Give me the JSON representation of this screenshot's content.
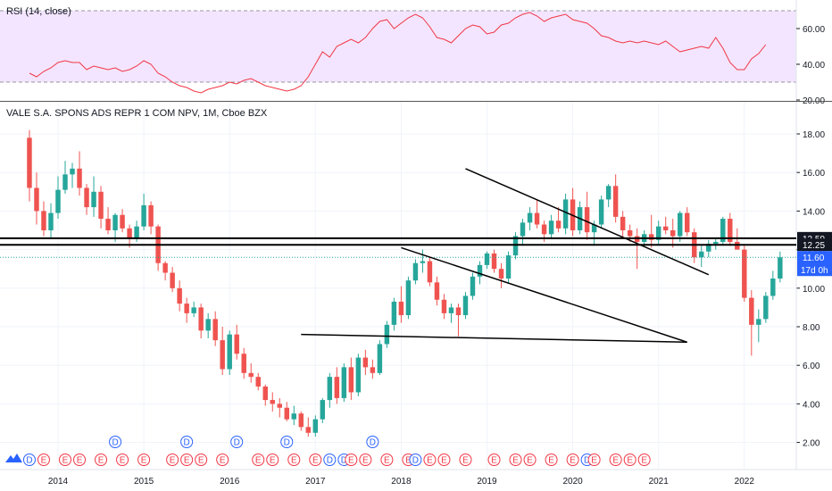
{
  "rsi": {
    "label": "RSI (14, close)",
    "ticks": [
      "60.00",
      "40.00",
      "20.00"
    ],
    "upper_band": 70,
    "lower_band": 30,
    "values": [
      35,
      33,
      36,
      38,
      41,
      42,
      41,
      41,
      37,
      39,
      38,
      37,
      38,
      36,
      37,
      39,
      42,
      40,
      35,
      33,
      30,
      28,
      27,
      25,
      24,
      26,
      27,
      28,
      30,
      29,
      31,
      32,
      30,
      28,
      27,
      26,
      25,
      26,
      28,
      33,
      40,
      47,
      44,
      50,
      52,
      54,
      52,
      55,
      60,
      64,
      65,
      60,
      63,
      66,
      68,
      66,
      61,
      55,
      54,
      52,
      56,
      60,
      62,
      61,
      57,
      58,
      62,
      63,
      66,
      68,
      69,
      67,
      64,
      66,
      67,
      68,
      65,
      64,
      63,
      60,
      56,
      55,
      53,
      52,
      53,
      52,
      53,
      52,
      51,
      53,
      50,
      47,
      48,
      49,
      50,
      49,
      55,
      49,
      41,
      37,
      37,
      43,
      46,
      51
    ],
    "line_color": "#f23645",
    "band_fill": "#f3e5ff"
  },
  "main": {
    "title": "VALE S.A. SPONS ADS REPR 1 COM NPV, 1M, Cboe BZX",
    "price_ticks": [
      "18.00",
      "16.00",
      "14.00",
      "12.00",
      "10.00",
      "8.00",
      "6.00",
      "4.00",
      "2.00"
    ],
    "levels": [
      {
        "value": 12.59,
        "label": "12.59"
      },
      {
        "value": 12.25,
        "label": "12.25"
      }
    ],
    "last_price": {
      "value": 11.6,
      "label": "11.60",
      "countdown": "17d 0h"
    },
    "colors": {
      "up": "#26a69a",
      "down": "#ef5350",
      "last_price": "#2962ff"
    },
    "candles": [
      [
        17.8,
        18.2,
        14.5,
        15.2
      ],
      [
        15.2,
        16.0,
        13.3,
        14.0
      ],
      [
        14.0,
        14.5,
        12.7,
        13.0
      ],
      [
        13.0,
        14.4,
        12.6,
        13.9
      ],
      [
        13.9,
        15.8,
        13.6,
        15.1
      ],
      [
        15.1,
        16.6,
        14.9,
        15.9
      ],
      [
        15.9,
        16.5,
        15.2,
        16.2
      ],
      [
        16.2,
        17.1,
        14.8,
        15.2
      ],
      [
        15.2,
        15.4,
        13.8,
        14.2
      ],
      [
        14.2,
        15.8,
        13.7,
        15.0
      ],
      [
        15.0,
        15.3,
        13.1,
        13.6
      ],
      [
        13.6,
        14.2,
        12.8,
        13.0
      ],
      [
        13.0,
        13.9,
        12.4,
        13.8
      ],
      [
        13.8,
        14.1,
        12.9,
        13.1
      ],
      [
        13.1,
        13.3,
        12.1,
        12.6
      ],
      [
        12.6,
        13.5,
        12.4,
        13.2
      ],
      [
        13.2,
        14.9,
        13.0,
        14.3
      ],
      [
        14.3,
        14.5,
        12.8,
        13.2
      ],
      [
        13.2,
        13.3,
        10.9,
        11.3
      ],
      [
        11.3,
        11.4,
        10.4,
        10.8
      ],
      [
        10.8,
        11.1,
        9.8,
        10.0
      ],
      [
        10.0,
        10.4,
        8.8,
        9.2
      ],
      [
        9.2,
        9.5,
        8.2,
        8.7
      ],
      [
        8.7,
        9.3,
        8.5,
        9.0
      ],
      [
        9.0,
        9.2,
        7.4,
        7.8
      ],
      [
        7.8,
        8.7,
        7.4,
        8.4
      ],
      [
        8.4,
        8.8,
        7.0,
        7.3
      ],
      [
        7.3,
        8.0,
        5.5,
        5.8
      ],
      [
        5.8,
        7.8,
        5.5,
        7.6
      ],
      [
        7.6,
        8.1,
        6.3,
        6.6
      ],
      [
        6.6,
        6.9,
        5.3,
        5.6
      ],
      [
        5.6,
        6.1,
        5.1,
        5.4
      ],
      [
        5.4,
        5.6,
        4.7,
        4.9
      ],
      [
        4.9,
        5.0,
        3.9,
        4.2
      ],
      [
        4.2,
        4.6,
        3.6,
        4.0
      ],
      [
        4.0,
        4.3,
        3.3,
        3.8
      ],
      [
        3.8,
        4.1,
        3.1,
        3.2
      ],
      [
        3.2,
        3.9,
        2.9,
        3.5
      ],
      [
        3.5,
        3.6,
        2.6,
        2.8
      ],
      [
        2.8,
        3.3,
        2.3,
        2.5
      ],
      [
        2.5,
        3.4,
        2.3,
        3.2
      ],
      [
        3.2,
        4.3,
        3.0,
        4.2
      ],
      [
        4.2,
        5.6,
        3.8,
        5.4
      ],
      [
        5.4,
        5.9,
        4.0,
        4.3
      ],
      [
        4.3,
        6.1,
        4.1,
        5.9
      ],
      [
        5.9,
        6.4,
        4.2,
        4.6
      ],
      [
        4.6,
        6.6,
        4.4,
        6.4
      ],
      [
        6.4,
        6.8,
        5.5,
        5.9
      ],
      [
        5.9,
        6.3,
        5.3,
        5.6
      ],
      [
        5.6,
        7.3,
        5.5,
        7.1
      ],
      [
        7.1,
        8.3,
        6.9,
        8.1
      ],
      [
        8.1,
        9.5,
        7.8,
        9.3
      ],
      [
        9.3,
        10.1,
        8.2,
        8.6
      ],
      [
        8.6,
        10.6,
        8.4,
        10.4
      ],
      [
        10.4,
        11.5,
        10.2,
        11.3
      ],
      [
        11.3,
        12.0,
        10.8,
        11.4
      ],
      [
        11.4,
        11.6,
        10.1,
        10.3
      ],
      [
        10.3,
        10.6,
        9.1,
        9.4
      ],
      [
        9.4,
        9.7,
        8.4,
        8.7
      ],
      [
        8.7,
        9.2,
        8.2,
        9.0
      ],
      [
        9.0,
        9.2,
        7.5,
        8.6
      ],
      [
        8.6,
        9.8,
        8.4,
        9.6
      ],
      [
        9.6,
        10.8,
        9.4,
        10.6
      ],
      [
        10.6,
        11.4,
        10.2,
        11.2
      ],
      [
        11.2,
        11.9,
        11.0,
        11.8
      ],
      [
        11.8,
        12.0,
        10.8,
        11.0
      ],
      [
        11.0,
        11.3,
        10.0,
        10.5
      ],
      [
        10.5,
        11.9,
        10.3,
        11.7
      ],
      [
        11.7,
        12.9,
        11.5,
        12.7
      ],
      [
        12.7,
        13.6,
        12.2,
        13.4
      ],
      [
        13.4,
        14.2,
        13.0,
        13.9
      ],
      [
        13.9,
        14.6,
        13.1,
        13.3
      ],
      [
        13.3,
        13.5,
        12.4,
        12.8
      ],
      [
        12.8,
        13.8,
        12.6,
        13.5
      ],
      [
        13.5,
        14.2,
        12.9,
        13.1
      ],
      [
        13.1,
        14.9,
        12.8,
        14.6
      ],
      [
        14.6,
        15.2,
        12.7,
        13.0
      ],
      [
        13.0,
        14.5,
        12.8,
        14.2
      ],
      [
        14.2,
        15.0,
        12.5,
        12.9
      ],
      [
        12.9,
        13.5,
        12.2,
        13.3
      ],
      [
        13.3,
        14.8,
        13.1,
        14.6
      ],
      [
        14.6,
        15.4,
        14.2,
        15.3
      ],
      [
        15.3,
        15.9,
        13.4,
        13.7
      ],
      [
        13.7,
        14.0,
        12.6,
        13.0
      ],
      [
        13.0,
        13.3,
        12.4,
        12.7
      ],
      [
        12.7,
        13.1,
        11.0,
        12.4
      ],
      [
        12.4,
        13.0,
        12.2,
        12.8
      ],
      [
        12.8,
        13.8,
        12.1,
        12.5
      ],
      [
        12.5,
        13.5,
        12.2,
        13.2
      ],
      [
        13.2,
        13.7,
        12.8,
        13.0
      ],
      [
        13.0,
        13.6,
        12.1,
        12.7
      ],
      [
        12.7,
        14.0,
        12.4,
        13.9
      ],
      [
        13.9,
        14.2,
        12.7,
        12.9
      ],
      [
        12.9,
        13.1,
        11.3,
        11.6
      ],
      [
        11.6,
        12.2,
        11.1,
        11.9
      ],
      [
        11.9,
        12.5,
        11.6,
        12.3
      ],
      [
        12.3,
        12.6,
        12.0,
        12.4
      ],
      [
        12.4,
        13.7,
        12.2,
        13.6
      ],
      [
        13.6,
        13.9,
        12.2,
        12.4
      ],
      [
        12.4,
        13.1,
        12.0,
        12.0
      ],
      [
        12.0,
        12.2,
        9.3,
        9.5
      ],
      [
        9.5,
        9.9,
        6.5,
        8.1
      ],
      [
        8.1,
        8.9,
        7.2,
        8.4
      ],
      [
        8.4,
        9.8,
        8.2,
        9.6
      ],
      [
        9.6,
        10.9,
        9.4,
        10.5
      ],
      [
        10.5,
        11.9,
        10.3,
        11.6
      ]
    ],
    "trendlines": [
      {
        "name": "upper-channel-line",
        "points": [
          [
            "2018-10",
            16.2
          ],
          [
            "2021-08",
            10.7
          ]
        ]
      },
      {
        "name": "lower-channel-line",
        "points": [
          [
            "2018-01",
            12.1
          ],
          [
            "2021-05",
            7.2
          ]
        ]
      },
      {
        "name": "support-line",
        "points": [
          [
            "2016-11",
            7.6
          ],
          [
            "2021-05",
            7.2
          ]
        ]
      }
    ]
  },
  "time_axis": {
    "years": [
      "2014",
      "2015",
      "2016",
      "2017",
      "2018",
      "2019",
      "2020",
      "2021",
      "2022"
    ]
  },
  "events": {
    "dividend_letter": "D",
    "earnings_letter": "E",
    "top_row": [
      {
        "type": "D",
        "month": "2014-09"
      },
      {
        "type": "D",
        "month": "2015-07"
      },
      {
        "type": "D",
        "month": "2016-02"
      },
      {
        "type": "D",
        "month": "2016-09"
      },
      {
        "type": "D",
        "month": "2017-09"
      }
    ],
    "bottom_row": [
      {
        "type": "D",
        "month": "2013-09"
      },
      {
        "type": "E",
        "month": "2013-11"
      },
      {
        "type": "E",
        "month": "2014-02"
      },
      {
        "type": "E",
        "month": "2014-04"
      },
      {
        "type": "E",
        "month": "2014-07"
      },
      {
        "type": "E",
        "month": "2014-10"
      },
      {
        "type": "E",
        "month": "2015-01"
      },
      {
        "type": "E",
        "month": "2015-05"
      },
      {
        "type": "E",
        "month": "2015-07"
      },
      {
        "type": "E",
        "month": "2015-09"
      },
      {
        "type": "E",
        "month": "2015-12"
      },
      {
        "type": "E",
        "month": "2016-05"
      },
      {
        "type": "E",
        "month": "2016-07"
      },
      {
        "type": "E",
        "month": "2016-10"
      },
      {
        "type": "E",
        "month": "2017-01"
      },
      {
        "type": "D",
        "month": "2017-03"
      },
      {
        "type": "D",
        "month": "2017-05"
      },
      {
        "type": "E",
        "month": "2017-06"
      },
      {
        "type": "E",
        "month": "2017-08"
      },
      {
        "type": "E",
        "month": "2017-11"
      },
      {
        "type": "E",
        "month": "2018-02"
      },
      {
        "type": "D",
        "month": "2018-03"
      },
      {
        "type": "E",
        "month": "2018-05"
      },
      {
        "type": "E",
        "month": "2018-07"
      },
      {
        "type": "E",
        "month": "2018-10"
      },
      {
        "type": "E",
        "month": "2019-02"
      },
      {
        "type": "E",
        "month": "2019-05"
      },
      {
        "type": "E",
        "month": "2019-07"
      },
      {
        "type": "E",
        "month": "2019-10"
      },
      {
        "type": "E",
        "month": "2020-01"
      },
      {
        "type": "D",
        "month": "2020-03"
      },
      {
        "type": "E",
        "month": "2020-04"
      },
      {
        "type": "E",
        "month": "2020-07"
      },
      {
        "type": "E",
        "month": "2020-09"
      },
      {
        "type": "E",
        "month": "2020-11"
      }
    ]
  }
}
